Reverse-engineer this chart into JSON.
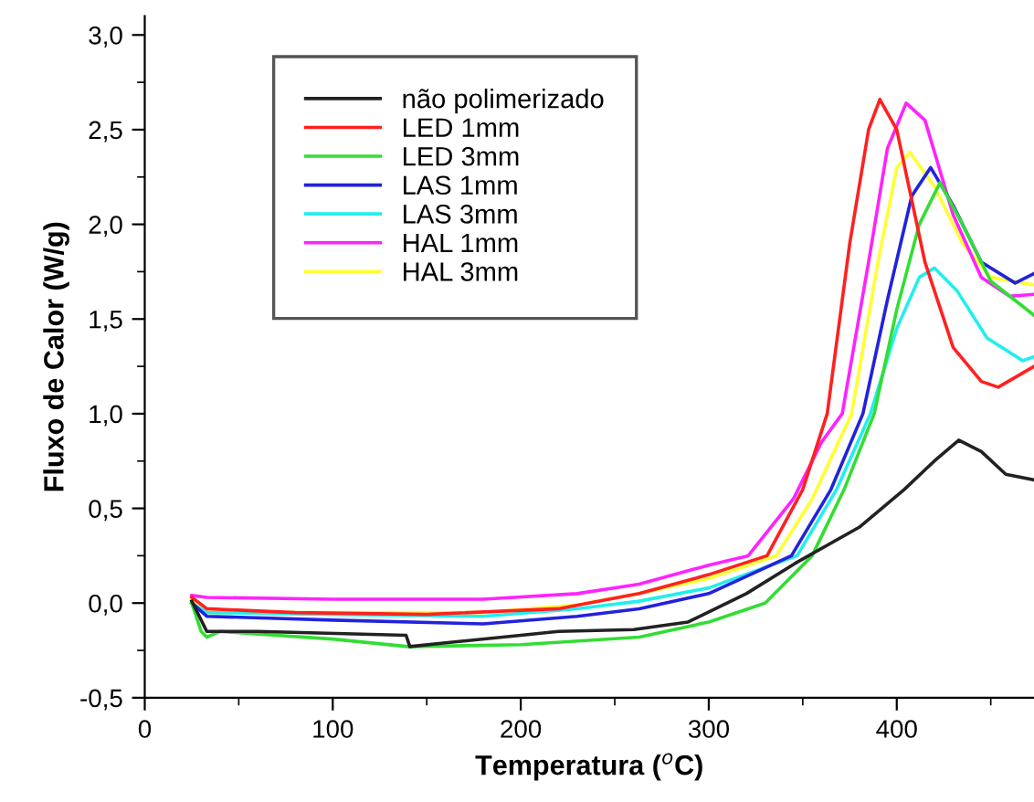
{
  "chart_data": {
    "type": "line",
    "xlabel": "Temperatura ($^{o}$C)",
    "ylabel": "Fluxo de Calor (W/g)",
    "xlim": [
      0,
      473
    ],
    "ylim": [
      -0.5,
      3.1
    ],
    "xticks": [
      0,
      100,
      200,
      300,
      400
    ],
    "yticks": [
      {
        "value": -0.5,
        "label": "-0,5"
      },
      {
        "value": 0.0,
        "label": "0,0"
      },
      {
        "value": 0.5,
        "label": "0,5"
      },
      {
        "value": 1.0,
        "label": "1,0"
      },
      {
        "value": 1.5,
        "label": "1,5"
      },
      {
        "value": 2.0,
        "label": "2,0"
      },
      {
        "value": 2.5,
        "label": "2,5"
      },
      {
        "value": 3.0,
        "label": "3,0"
      }
    ],
    "grid": false,
    "legend": "top left",
    "marker": "none",
    "line_style": "solid",
    "series": [
      {
        "name": "não polimerizado",
        "color": "#222222",
        "x": [
          25,
          33,
          60,
          139,
          141,
          160,
          200,
          220,
          260,
          289,
          320,
          346,
          380,
          404,
          420,
          433,
          445,
          458,
          473
        ],
        "values": [
          0.01,
          -0.15,
          -0.15,
          -0.17,
          -0.23,
          -0.21,
          -0.17,
          -0.15,
          -0.14,
          -0.1,
          0.05,
          0.21,
          0.4,
          0.6,
          0.75,
          0.86,
          0.8,
          0.68,
          0.65
        ]
      },
      {
        "name": "LED 1mm",
        "color": "#ff2020",
        "x": [
          25,
          33,
          80,
          150,
          220,
          263,
          300,
          331,
          350,
          363,
          375,
          385,
          391,
          400,
          415,
          430,
          445,
          454,
          473
        ],
        "values": [
          0.03,
          -0.03,
          -0.05,
          -0.06,
          -0.03,
          0.05,
          0.15,
          0.25,
          0.6,
          1.0,
          1.9,
          2.5,
          2.66,
          2.5,
          1.8,
          1.35,
          1.17,
          1.14,
          1.25
        ]
      },
      {
        "name": "LED 3mm",
        "color": "#33dd33",
        "x": [
          25,
          30,
          33,
          40,
          100,
          140,
          200,
          263,
          300,
          330,
          355,
          372,
          388,
          400,
          412,
          423,
          435,
          450,
          473
        ],
        "values": [
          0.0,
          -0.15,
          -0.18,
          -0.15,
          -0.19,
          -0.23,
          -0.22,
          -0.18,
          -0.1,
          0.0,
          0.25,
          0.6,
          1.0,
          1.55,
          2.0,
          2.22,
          2.0,
          1.7,
          1.52
        ]
      },
      {
        "name": "LAS 1mm",
        "color": "#2222dd",
        "x": [
          25,
          33,
          100,
          180,
          230,
          263,
          300,
          344,
          365,
          382,
          395,
          408,
          418,
          430,
          445,
          463,
          473
        ],
        "values": [
          0.0,
          -0.07,
          -0.09,
          -0.11,
          -0.07,
          -0.03,
          0.05,
          0.25,
          0.6,
          1.0,
          1.6,
          2.15,
          2.3,
          2.1,
          1.8,
          1.69,
          1.74
        ]
      },
      {
        "name": "LAS 3mm",
        "color": "#22eeee",
        "x": [
          25,
          33,
          100,
          180,
          230,
          263,
          300,
          347,
          368,
          386,
          400,
          412,
          420,
          432,
          448,
          467,
          473
        ],
        "values": [
          0.0,
          -0.05,
          -0.06,
          -0.07,
          -0.03,
          0.01,
          0.08,
          0.25,
          0.6,
          1.0,
          1.45,
          1.72,
          1.77,
          1.65,
          1.4,
          1.28,
          1.3
        ]
      },
      {
        "name": "HAL 1mm",
        "color": "#ff22ff",
        "x": [
          25,
          33,
          100,
          180,
          230,
          263,
          300,
          321,
          345,
          360,
          371,
          385,
          395,
          405,
          415,
          430,
          445,
          460,
          473
        ],
        "values": [
          0.04,
          0.03,
          0.02,
          0.02,
          0.05,
          0.1,
          0.2,
          0.25,
          0.55,
          0.85,
          1.0,
          1.8,
          2.4,
          2.64,
          2.55,
          2.05,
          1.72,
          1.62,
          1.63
        ]
      },
      {
        "name": "HAL 3mm",
        "color": "#ffff33",
        "x": [
          25,
          33,
          100,
          180,
          230,
          263,
          300,
          336,
          355,
          376,
          390,
          400,
          407,
          420,
          435,
          450,
          473
        ],
        "values": [
          0.02,
          -0.05,
          -0.05,
          -0.05,
          -0.01,
          0.05,
          0.13,
          0.25,
          0.55,
          1.0,
          1.8,
          2.3,
          2.38,
          2.2,
          1.9,
          1.72,
          1.68
        ]
      }
    ]
  }
}
